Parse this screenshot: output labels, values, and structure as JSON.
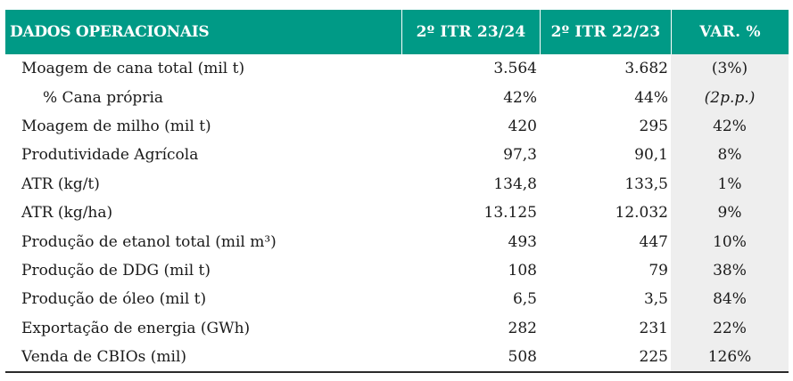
{
  "header": {
    "label": "DADOS OPERACIONAIS",
    "col1": "2º ITR 23/24",
    "col2": "2º ITR 22/23",
    "col3": "VAR. %"
  },
  "colors": {
    "header_bg": "#009a86",
    "header_text": "#ffffff",
    "var_column_bg": "#eeeeee"
  },
  "rows": [
    {
      "label": "Moagem de cana total (mil t)",
      "v1": "3.564",
      "v2": "3.682",
      "v3": "(3%)"
    },
    {
      "label": "% Cana própria",
      "v1": "42%",
      "v2": "44%",
      "v3": "(2p.p.)"
    },
    {
      "label": "Moagem de milho (mil t)",
      "v1": "420",
      "v2": "295",
      "v3": "42%"
    },
    {
      "label": "Produtividade Agrícola",
      "v1": "97,3",
      "v2": "90,1",
      "v3": "8%"
    },
    {
      "label": "ATR (kg/t)",
      "v1": "134,8",
      "v2": "133,5",
      "v3": "1%"
    },
    {
      "label": "ATR (kg/ha)",
      "v1": "13.125",
      "v2": "12.032",
      "v3": "9%"
    },
    {
      "label": "Produção de etanol total (mil m³)",
      "v1": "493",
      "v2": "447",
      "v3": "10%"
    },
    {
      "label": "Produção de DDG (mil t)",
      "v1": "108",
      "v2": "79",
      "v3": "38%"
    },
    {
      "label": "Produção de óleo (mil t)",
      "v1": "6,5",
      "v2": "3,5",
      "v3": "84%"
    },
    {
      "label": "Exportação de energia (GWh)",
      "v1": "282",
      "v2": "231",
      "v3": "22%"
    },
    {
      "label": "Venda de CBIOs (mil)",
      "v1": "508",
      "v2": "225",
      "v3": "126%"
    }
  ]
}
